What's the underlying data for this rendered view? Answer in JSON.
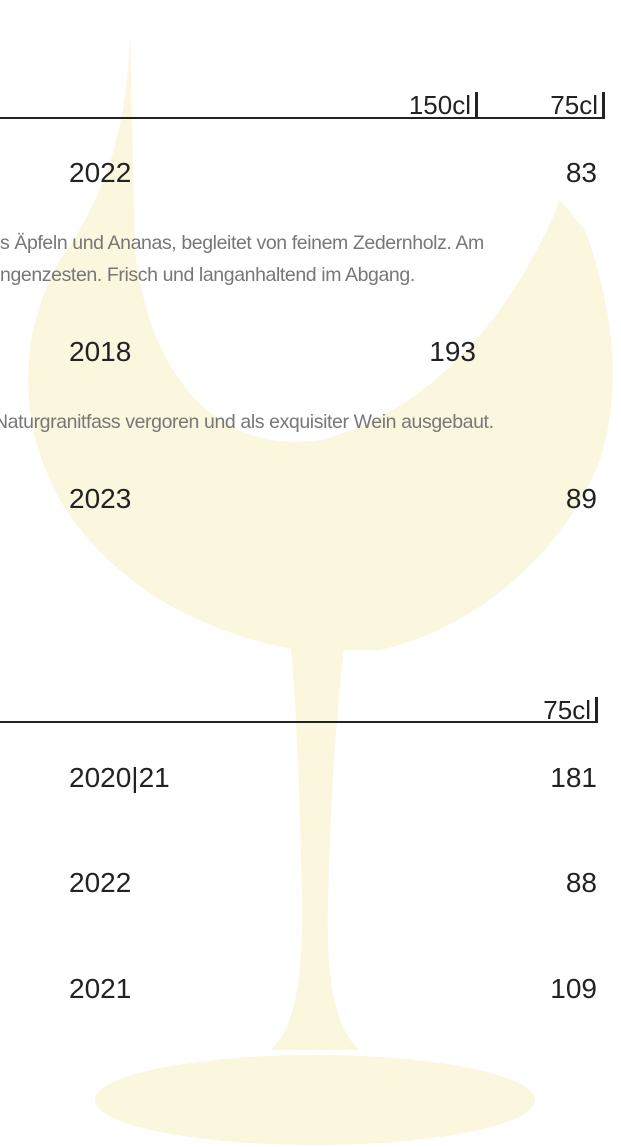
{
  "sections": [
    {
      "columns": [
        "150cl",
        "75cl"
      ],
      "items": [
        {
          "vintage": "2022",
          "price_75cl": "83",
          "description": [
            "s Äpfeln und Ananas, begleitet von feinem Zedernholz. Am",
            "ngenzesten. Frisch und langanhaltend im Abgang."
          ]
        },
        {
          "vintage": "2018",
          "price_150cl": "193",
          "description": [
            "Naturgranitfass vergoren und als exquisiter Wein ausgebaut."
          ]
        },
        {
          "vintage": "2023",
          "price_75cl": "89"
        }
      ]
    },
    {
      "columns": [
        "75cl"
      ],
      "items": [
        {
          "vintage": "2020|21",
          "price_75cl": "181"
        },
        {
          "vintage": "2022",
          "price_75cl": "88"
        },
        {
          "vintage": "2021",
          "price_75cl": "109"
        }
      ]
    }
  ]
}
